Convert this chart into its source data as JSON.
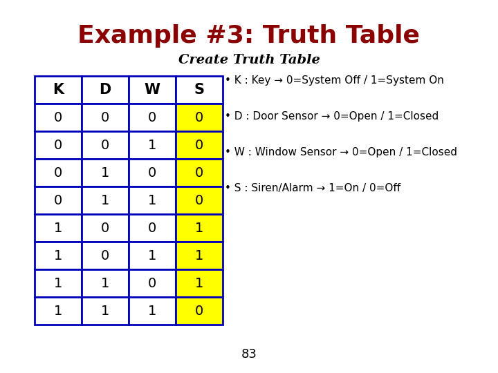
{
  "title": "Example #3: Truth Table",
  "subtitle": "Create Truth Table",
  "title_color": "#8B0000",
  "subtitle_color": "#000000",
  "bg_color": "#ffffff",
  "table_headers": [
    "K",
    "D",
    "W",
    "S"
  ],
  "table_data": [
    [
      0,
      0,
      0,
      0
    ],
    [
      0,
      0,
      1,
      0
    ],
    [
      0,
      1,
      0,
      0
    ],
    [
      0,
      1,
      1,
      0
    ],
    [
      1,
      0,
      0,
      1
    ],
    [
      1,
      0,
      1,
      1
    ],
    [
      1,
      1,
      0,
      1
    ],
    [
      1,
      1,
      1,
      0
    ]
  ],
  "s_col_color": "#FFFF00",
  "header_bg": "#ffffff",
  "cell_bg": "#ffffff",
  "border_color": "#0000BB",
  "bullet_lines": [
    "• K : Key → 0=System Off / 1=System On",
    "• D : Door Sensor → 0=Open / 1=Closed",
    "• W : Window Sensor → 0=Open / 1=Closed",
    "• S : Siren/Alarm → 1=On / 0=Off"
  ],
  "page_number": "83",
  "title_fontsize": 26,
  "subtitle_fontsize": 14,
  "header_fontsize": 15,
  "cell_fontsize": 14,
  "bullet_fontsize": 11
}
